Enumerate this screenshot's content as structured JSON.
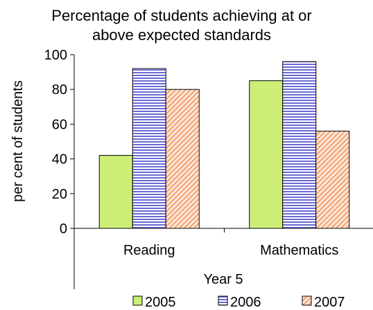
{
  "chart_data": {
    "type": "bar",
    "title_lines": [
      "Percentage of students achieving at or",
      "above expected standards"
    ],
    "ylabel": "per cent of students",
    "xlabel": "Year 5",
    "ylim": [
      0,
      100
    ],
    "yticks": [
      "0",
      "20",
      "40",
      "60",
      "80",
      "100"
    ],
    "categories": [
      "Reading",
      "Mathematics"
    ],
    "series": [
      {
        "name": "2005",
        "values": [
          42,
          85
        ],
        "color": "#ccee77",
        "pattern": "solid"
      },
      {
        "name": "2006",
        "values": [
          92,
          96
        ],
        "color": "#7777ee",
        "pattern": "horizontal-lines"
      },
      {
        "name": "2007",
        "values": [
          80,
          56
        ],
        "color": "#ffccaa",
        "pattern": "diagonal-lines"
      }
    ],
    "legend_position": "bottom",
    "grid": false
  }
}
